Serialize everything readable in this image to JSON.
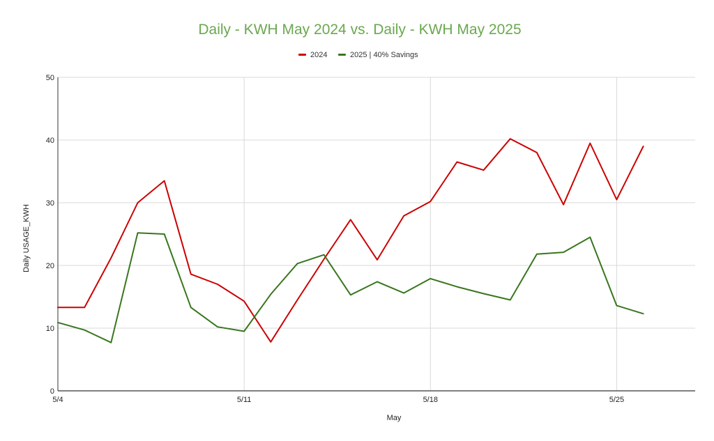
{
  "chart_data": {
    "type": "line",
    "title": "Daily - KWH May 2024  vs. Daily - KWH May 2025",
    "title_color": "#6aa84f",
    "xlabel": "May",
    "ylabel": "Daily USAGE_KWH",
    "ylim": [
      0,
      50
    ],
    "yticks": [
      0,
      10,
      20,
      30,
      40,
      50
    ],
    "xlim": [
      4,
      27.95
    ],
    "xticks": [
      {
        "value": 4,
        "label": "5/4"
      },
      {
        "value": 11,
        "label": "5/11"
      },
      {
        "value": 18,
        "label": "5/18"
      },
      {
        "value": 25,
        "label": "5/25"
      }
    ],
    "grid": true,
    "legend_position": "top-center",
    "x": [
      4,
      5,
      6,
      7,
      8,
      9,
      10,
      11,
      12,
      13,
      14,
      15,
      16,
      17,
      18,
      19,
      20,
      21,
      22,
      23,
      24,
      25,
      26
    ],
    "series": [
      {
        "name": "2024",
        "color": "#cc0000",
        "values": [
          13.3,
          13.3,
          21.2,
          30.0,
          33.5,
          18.6,
          17.0,
          14.3,
          7.8,
          14.5,
          21.0,
          27.3,
          20.9,
          27.9,
          30.2,
          36.5,
          35.2,
          40.2,
          38.0,
          29.7,
          39.5,
          30.5,
          39.0
        ]
      },
      {
        "name": "2025 | 40% Savings",
        "color": "#38761d",
        "values": [
          10.9,
          9.7,
          7.7,
          25.2,
          25.0,
          13.3,
          10.2,
          9.5,
          15.4,
          20.3,
          21.7,
          15.3,
          17.4,
          15.6,
          17.9,
          16.6,
          15.5,
          14.5,
          21.8,
          22.1,
          24.5,
          13.6,
          12.3
        ]
      }
    ]
  }
}
